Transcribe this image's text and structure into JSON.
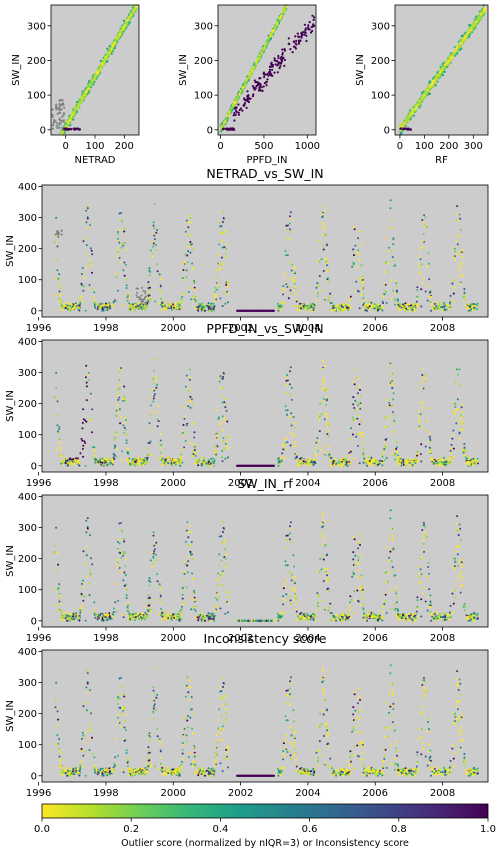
{
  "colors": {
    "panel_bg": "#cccccc",
    "cmap": [
      "#fde725",
      "#b5de2b",
      "#6ece58",
      "#35b779",
      "#1f9e89",
      "#26828e",
      "#31688e",
      "#3e4989",
      "#482878",
      "#440154"
    ],
    "bad_points": "#440154",
    "gray_points": "#808080"
  },
  "chart_data": [
    {
      "id": "scatter-netrad",
      "type": "scatter",
      "xlabel": "NETRAD",
      "ylabel": "SW_IN",
      "xlim": [
        -50,
        250
      ],
      "ylim": [
        -15,
        360
      ],
      "xticks": [
        0,
        100,
        200
      ],
      "yticks": [
        0,
        100,
        200,
        300
      ],
      "relation": {
        "slope": 1.45,
        "intercept": 8,
        "x_from": -20,
        "x_to": 245,
        "spread": 14
      },
      "extra_clusters": [
        {
          "x_from": -45,
          "x_to": -5,
          "y_from": 0,
          "y_to": 90,
          "color": "gray",
          "n": 55
        },
        {
          "x_from": -5,
          "x_to": 50,
          "y_from": 0,
          "y_to": 4,
          "color": "bad",
          "n": 30
        }
      ]
    },
    {
      "id": "scatter-ppfd",
      "type": "scatter",
      "xlabel": "PPFD_IN",
      "ylabel": "SW_IN",
      "xlim": [
        -30,
        1100
      ],
      "ylim": [
        -15,
        360
      ],
      "xticks": [
        0,
        500,
        1000
      ],
      "yticks": [
        0,
        100,
        200,
        300
      ],
      "relation": {
        "slope": 0.47,
        "intercept": 0,
        "x_from": 0,
        "x_to": 760,
        "spread": 8
      },
      "extra_clusters": [
        {
          "x_from": 150,
          "x_to": 1080,
          "slope": 0.29,
          "spread": 25,
          "color": "bad",
          "n": 190
        },
        {
          "x_from": 20,
          "x_to": 170,
          "y_from": 0,
          "y_to": 4,
          "color": "bad",
          "n": 25
        }
      ]
    },
    {
      "id": "scatter-rf",
      "type": "scatter",
      "xlabel": "RF",
      "ylabel": "SW_IN",
      "xlim": [
        -20,
        360
      ],
      "ylim": [
        -15,
        360
      ],
      "xticks": [
        0,
        100,
        200,
        300
      ],
      "yticks": [
        0,
        100,
        200,
        300
      ],
      "relation": {
        "slope": 1.0,
        "intercept": 0,
        "x_from": 0,
        "x_to": 350,
        "spread": 14
      },
      "extra_clusters": [
        {
          "x_from": 2,
          "x_to": 45,
          "y_from": 0,
          "y_to": 4,
          "color": "bad",
          "n": 20
        }
      ]
    },
    {
      "id": "ts-netrad",
      "type": "scatter",
      "title": "NETRAD_vs_SW_IN",
      "ylabel": "SW_IN",
      "xlim": [
        1996.1,
        2009.35
      ],
      "ylim": [
        -20,
        405
      ],
      "xticks": [
        1996,
        1998,
        2000,
        2002,
        2004,
        2006,
        2008
      ],
      "yticks": [
        0,
        100,
        200,
        300,
        400
      ],
      "pattern": "seasonal",
      "gap": [
        2001.65,
        2003.1
      ],
      "gap_points": {
        "x_from": 2001.9,
        "x_to": 2003.0,
        "y": 0,
        "color": "bad"
      },
      "score_bias": 0.25
    },
    {
      "id": "ts-ppfd",
      "type": "scatter",
      "title": "PPFD_IN_vs_SW_IN",
      "ylabel": "SW_IN",
      "xlim": [
        1996.1,
        2009.35
      ],
      "ylim": [
        -20,
        405
      ],
      "xticks": [
        1996,
        1998,
        2000,
        2002,
        2004,
        2006,
        2008
      ],
      "yticks": [
        0,
        100,
        200,
        300,
        400
      ],
      "pattern": "seasonal",
      "gap": [
        2001.65,
        2003.1
      ],
      "gap_points": {
        "x_from": 2001.9,
        "x_to": 2003.0,
        "y": 0,
        "color": "bad"
      },
      "bad_segment": [
        1996.85,
        1997.45
      ],
      "score_bias": 0.2
    },
    {
      "id": "ts-rf",
      "type": "scatter",
      "title": "SW_IN_rf",
      "ylabel": "SW_IN",
      "xlim": [
        1996.1,
        2009.35
      ],
      "ylim": [
        -20,
        405
      ],
      "xticks": [
        1996,
        1998,
        2000,
        2002,
        2004,
        2006,
        2008
      ],
      "yticks": [
        0,
        100,
        200,
        300,
        400
      ],
      "pattern": "seasonal",
      "gap": [
        2001.65,
        2003.1
      ],
      "gap_points": {
        "x_from": 2001.9,
        "x_to": 2003.0,
        "y": 0,
        "color": "mixed"
      },
      "score_bias": 0.3
    },
    {
      "id": "ts-inconsistency",
      "type": "scatter",
      "title": "Inconsistency score",
      "ylabel": "SW_IN",
      "xlim": [
        1996.1,
        2009.35
      ],
      "ylim": [
        -20,
        405
      ],
      "xticks": [
        1996,
        1998,
        2000,
        2002,
        2004,
        2006,
        2008
      ],
      "yticks": [
        0,
        100,
        200,
        300,
        400
      ],
      "pattern": "seasonal",
      "gap": [
        2001.65,
        2003.1
      ],
      "gap_points": {
        "x_from": 2001.9,
        "x_to": 2003.0,
        "y": 0,
        "color": "bad"
      },
      "score_bias": 0.15
    }
  ],
  "colorbar": {
    "label": "Outlier score (normalized by nIQR=3) or Inconsistency score",
    "range": [
      0.0,
      1.0
    ],
    "ticks": [
      "0.0",
      "0.2",
      "0.4",
      "0.6",
      "0.8",
      "1.0"
    ]
  }
}
